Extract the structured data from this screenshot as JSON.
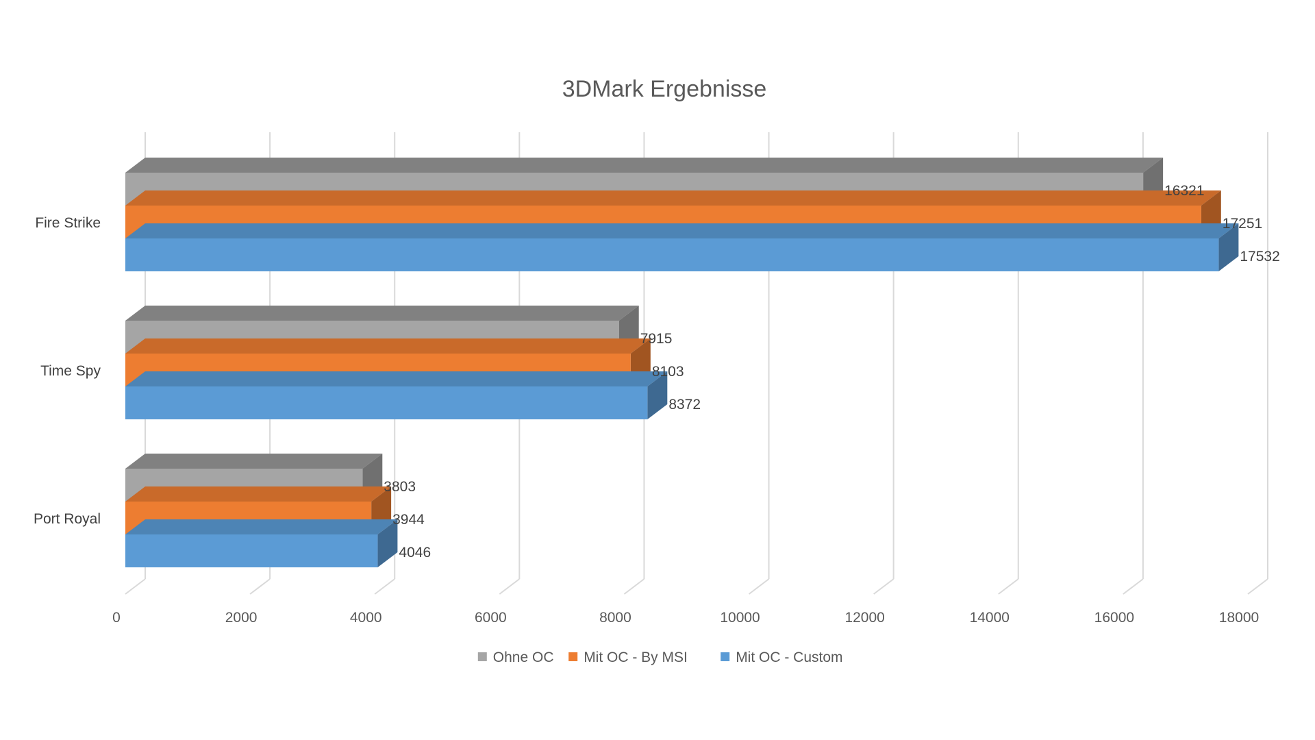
{
  "chart_data": {
    "type": "bar",
    "orientation": "horizontal",
    "style": "3d-clustered",
    "title": "3DMark Ergebnisse",
    "categories": [
      "Fire Strike",
      "Time Spy",
      "Port Royal"
    ],
    "series": [
      {
        "name": "Ohne OC",
        "color": "#a5a5a5",
        "values": [
          16321,
          7915,
          3803
        ]
      },
      {
        "name": "Mit OC - By MSI",
        "color": "#ed7d31",
        "values": [
          17251,
          8103,
          3944
        ]
      },
      {
        "name": "Mit OC - Custom",
        "color": "#5b9bd5",
        "values": [
          17532,
          8372,
          4046
        ]
      }
    ],
    "xlim": [
      0,
      18000
    ],
    "ticks": [
      "0",
      "2000",
      "4000",
      "6000",
      "8000",
      "10000",
      "12000",
      "14000",
      "16000",
      "18000"
    ],
    "tick_step": 2000,
    "grid": true,
    "legend_position": "bottom",
    "data_labels": true
  }
}
